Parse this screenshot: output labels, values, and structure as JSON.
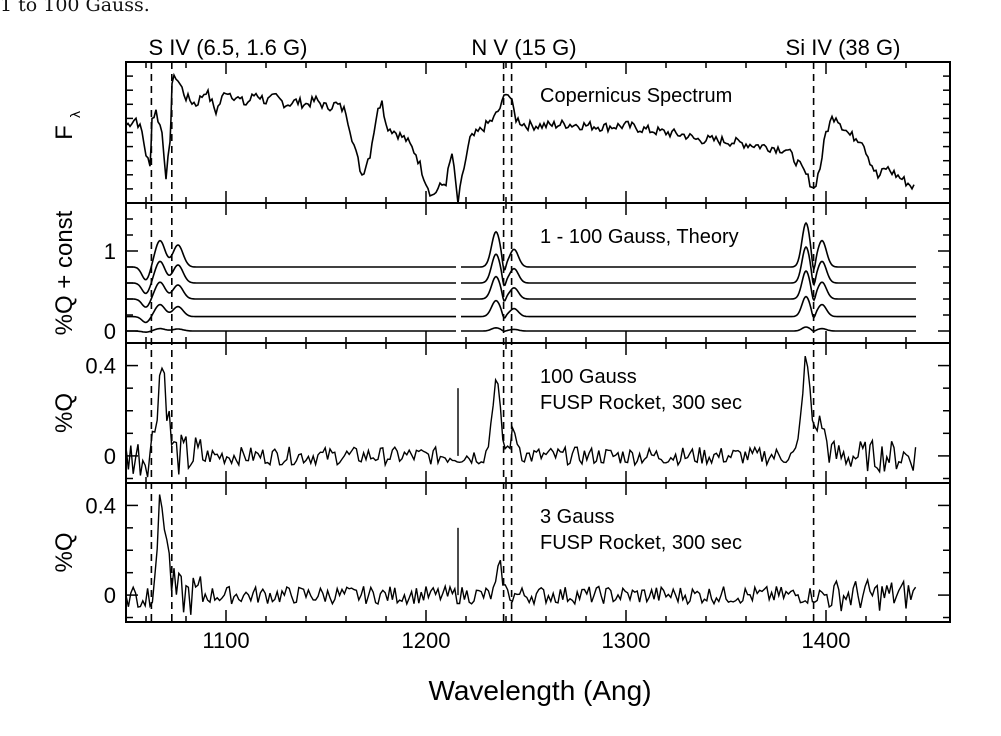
{
  "caption": "1 to 100 Gauss.",
  "chart_data": {
    "type": "line",
    "xlabel": "Wavelength (Ang)",
    "xlim": [
      1050,
      1462
    ],
    "x_ticks": [
      1100,
      1200,
      1300,
      1400
    ],
    "line_markers": [
      {
        "label": "S IV (6.5, 1.6 G)",
        "wavelengths": [
          1062.7,
          1072.9
        ]
      },
      {
        "label": "N V (15 G)",
        "wavelengths": [
          1238.8,
          1242.8
        ]
      },
      {
        "label": "Si IV (38 G)",
        "wavelengths": [
          1393.8
        ]
      }
    ],
    "panels": [
      {
        "id": "copernicus",
        "ylabel": "F",
        "ylabel_sub": "λ",
        "labels": [
          "Copernicus Spectrum"
        ],
        "ylim": [
          0,
          1
        ],
        "y_ticks": [],
        "series": [
          {
            "x": [
              1050,
              1055,
              1058,
              1060,
              1062,
              1063,
              1065,
              1068,
              1070,
              1072,
              1073,
              1075,
              1080,
              1085,
              1090,
              1095,
              1100,
              1105,
              1110,
              1115,
              1120,
              1125,
              1130,
              1135,
              1140,
              1145,
              1150,
              1155,
              1160,
              1165,
              1168,
              1172,
              1175,
              1178,
              1180,
              1185,
              1190,
              1195,
              1200,
              1203,
              1206,
              1210,
              1213,
              1216,
              1219,
              1222,
              1226,
              1230,
              1234,
              1238,
              1240,
              1242,
              1245,
              1250,
              1260,
              1270,
              1280,
              1290,
              1300,
              1310,
              1320,
              1330,
              1335,
              1340,
              1350,
              1360,
              1370,
              1380,
              1385,
              1390,
              1394,
              1397,
              1400,
              1403,
              1405,
              1408,
              1412,
              1418,
              1422,
              1426,
              1430,
              1435,
              1440,
              1445
            ],
            "y": [
              0.55,
              0.6,
              0.5,
              0.35,
              0.25,
              0.6,
              0.65,
              0.5,
              0.2,
              0.4,
              0.85,
              0.9,
              0.75,
              0.7,
              0.8,
              0.65,
              0.8,
              0.75,
              0.7,
              0.78,
              0.72,
              0.75,
              0.7,
              0.72,
              0.7,
              0.73,
              0.68,
              0.7,
              0.65,
              0.35,
              0.2,
              0.35,
              0.6,
              0.75,
              0.55,
              0.5,
              0.45,
              0.35,
              0.15,
              0.05,
              0.1,
              0.15,
              0.35,
              0.0,
              0.25,
              0.45,
              0.5,
              0.55,
              0.6,
              0.7,
              0.8,
              0.75,
              0.6,
              0.55,
              0.55,
              0.56,
              0.55,
              0.54,
              0.55,
              0.52,
              0.5,
              0.48,
              0.45,
              0.45,
              0.44,
              0.42,
              0.4,
              0.38,
              0.3,
              0.2,
              0.1,
              0.25,
              0.5,
              0.6,
              0.62,
              0.55,
              0.48,
              0.45,
              0.3,
              0.18,
              0.25,
              0.2,
              0.15,
              0.1
            ]
          }
        ]
      },
      {
        "id": "theory",
        "ylabel": "%Q + const",
        "labels": [
          "1 - 100 Gauss, Theory"
        ],
        "ylim": [
          -0.15,
          1.6
        ],
        "y_ticks": [
          0,
          1
        ],
        "series": [
          {
            "offset": 0.0,
            "amp": 0.05
          },
          {
            "offset": 0.18,
            "amp": 0.25
          },
          {
            "offset": 0.4,
            "amp": 0.35
          },
          {
            "offset": 0.6,
            "amp": 0.45
          },
          {
            "offset": 0.8,
            "amp": 0.55
          }
        ]
      },
      {
        "id": "rocket100",
        "ylabel": "%Q",
        "labels": [
          "100 Gauss",
          "FUSP Rocket, 300 sec"
        ],
        "ylim": [
          -0.12,
          0.5
        ],
        "y_ticks": [
          0,
          0.4
        ],
        "features": [
          {
            "center": 1068,
            "amp": 0.4,
            "width": 2.5
          },
          {
            "center": 1235,
            "amp": 0.33,
            "width": 2.0
          },
          {
            "center": 1244,
            "amp": 0.1,
            "width": 2.0
          },
          {
            "center": 1390,
            "amp": 0.42,
            "width": 2.0
          },
          {
            "center": 1397,
            "amp": 0.15,
            "width": 2.5
          }
        ],
        "noise": 0.04
      },
      {
        "id": "rocket3",
        "ylabel": "%Q",
        "labels": [
          "3 Gauss",
          "FUSP Rocket, 300 sec"
        ],
        "ylim": [
          -0.12,
          0.5
        ],
        "y_ticks": [
          0,
          0.4
        ],
        "features": [
          {
            "center": 1068,
            "amp": 0.4,
            "width": 2.5
          },
          {
            "center": 1237,
            "amp": 0.12,
            "width": 1.5
          }
        ],
        "noise": 0.04
      }
    ]
  }
}
